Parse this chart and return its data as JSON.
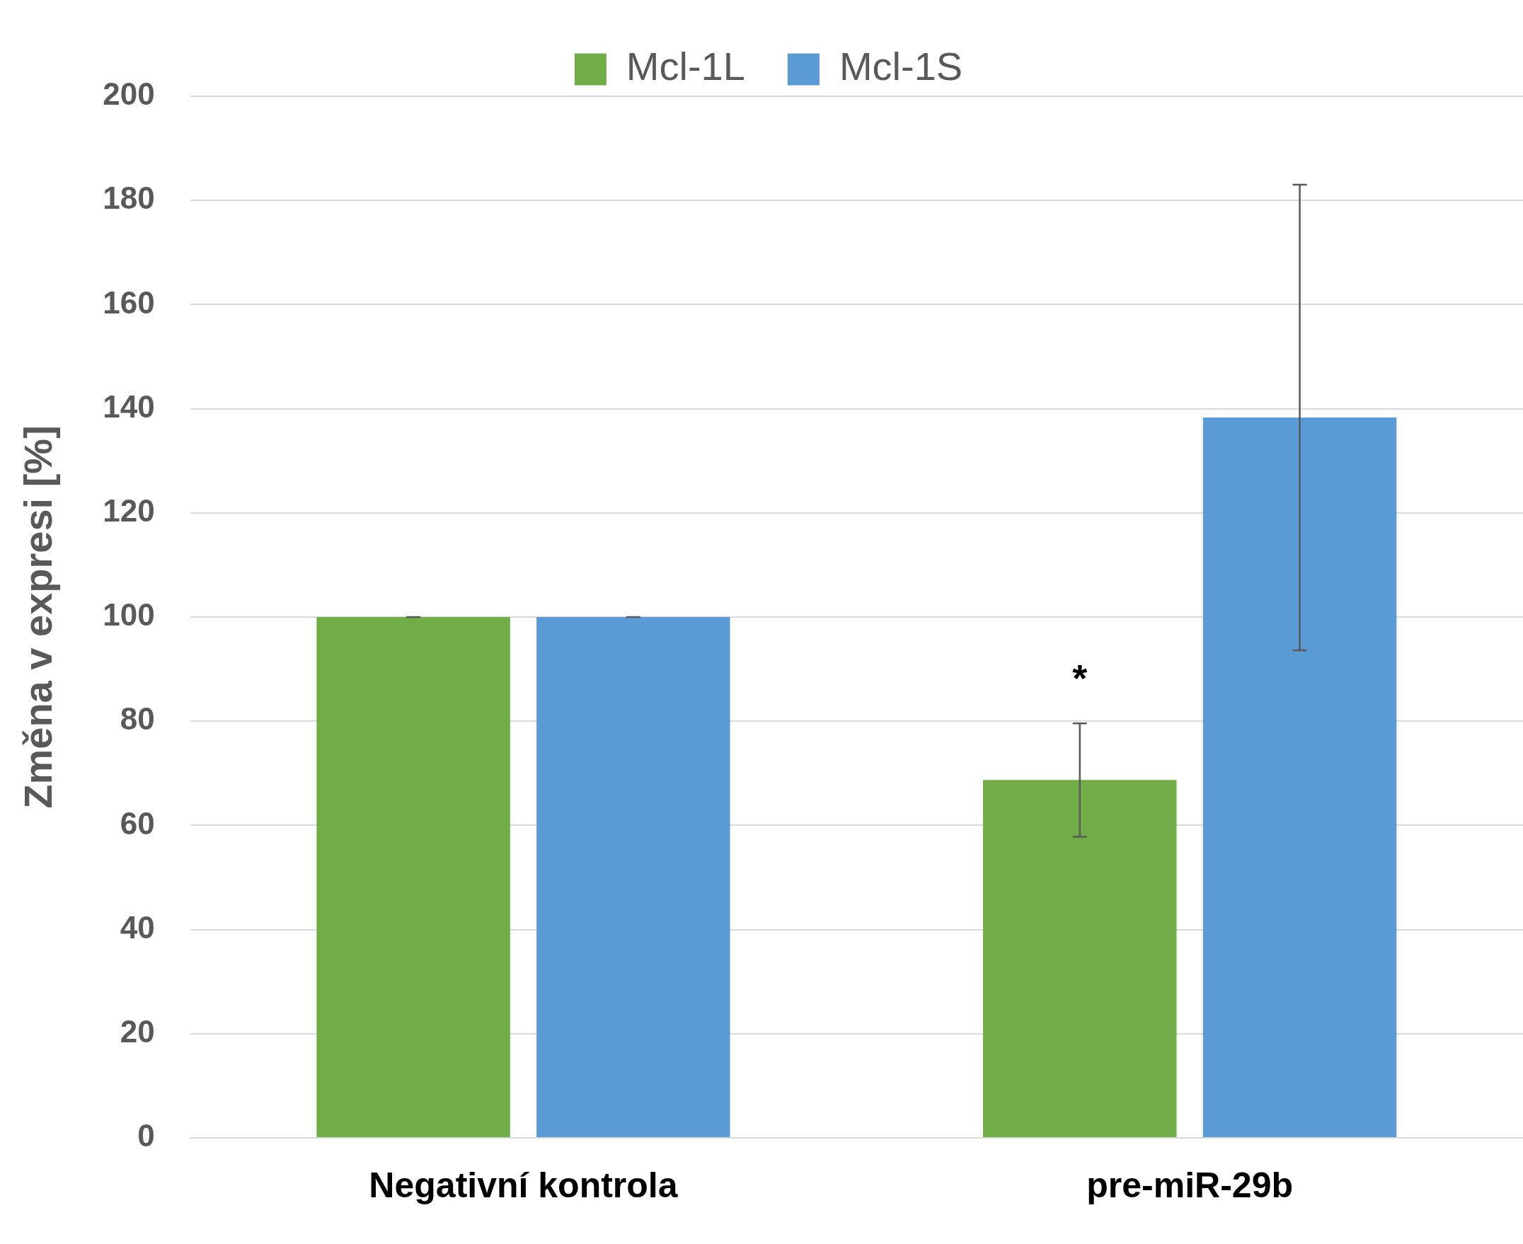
{
  "chart_data": {
    "type": "bar",
    "ylabel": "Změna v expresi [%]",
    "categories": [
      "Negativní kontrola",
      "pre-miR-29b"
    ],
    "series": [
      {
        "name": "Mcl-1L",
        "color": "#70ad47",
        "values": [
          100,
          68.7
        ],
        "errors": [
          0,
          10.9
        ]
      },
      {
        "name": "Mcl-1S",
        "color": "#5b9bd5",
        "values": [
          100,
          138.3
        ],
        "errors": [
          0,
          44.7
        ]
      }
    ],
    "ylim": [
      0,
      200
    ],
    "yticks": [
      0,
      20,
      40,
      60,
      80,
      100,
      120,
      140,
      160,
      180,
      200
    ],
    "grid": "y",
    "legend": "top",
    "annotations": [
      "*"
    ]
  }
}
